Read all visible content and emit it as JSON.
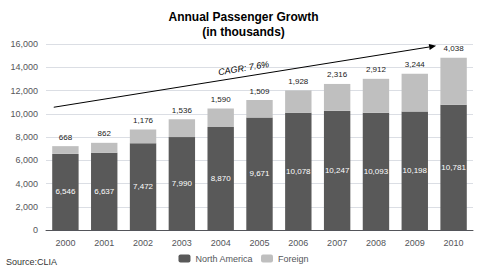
{
  "chart_data": {
    "type": "bar",
    "title": "Annual Passenger Growth\n(in thousands)",
    "categories": [
      "2000",
      "2001",
      "2002",
      "2003",
      "2004",
      "2005",
      "2006",
      "2007",
      "2008",
      "2009",
      "2010"
    ],
    "series": [
      {
        "name": "North America",
        "color": "#595959",
        "values": [
          6546,
          6637,
          7472,
          7990,
          8870,
          9671,
          10078,
          10247,
          10093,
          10198,
          10781
        ],
        "value_labels": [
          "6,546",
          "6,637",
          "7,472",
          "7,990",
          "8,870",
          "9,671",
          "10,078",
          "10,247",
          "10,093",
          "10,198",
          "10,781"
        ]
      },
      {
        "name": "Foreign",
        "color": "#bfbfbf",
        "values": [
          668,
          862,
          1176,
          1536,
          1590,
          1509,
          1928,
          2316,
          2912,
          3244,
          4038
        ],
        "value_labels": [
          "668",
          "862",
          "1,176",
          "1,536",
          "1,590",
          "1,509",
          "1,928",
          "2,316",
          "2,912",
          "3,244",
          "4,038"
        ]
      }
    ],
    "stacked": true,
    "data_labels": true,
    "ylim": [
      0,
      16000
    ],
    "yticks": [
      0,
      {
        "value": 2000,
        "label": "2,000"
      },
      {
        "value": 4000,
        "label": "4,000"
      },
      {
        "value": 6000,
        "label": "6,000"
      },
      {
        "value": 8000,
        "label": "8,000"
      },
      {
        "value": 10000,
        "label": "10,000"
      },
      {
        "value": 12000,
        "label": "12,000"
      },
      {
        "value": 14000,
        "label": "14,000"
      },
      {
        "value": 16000,
        "label": "16,000"
      }
    ],
    "grid": true,
    "legend": "bottom",
    "annotations": [
      "CAGR: 7.6%",
      "Source:CLIA"
    ]
  }
}
